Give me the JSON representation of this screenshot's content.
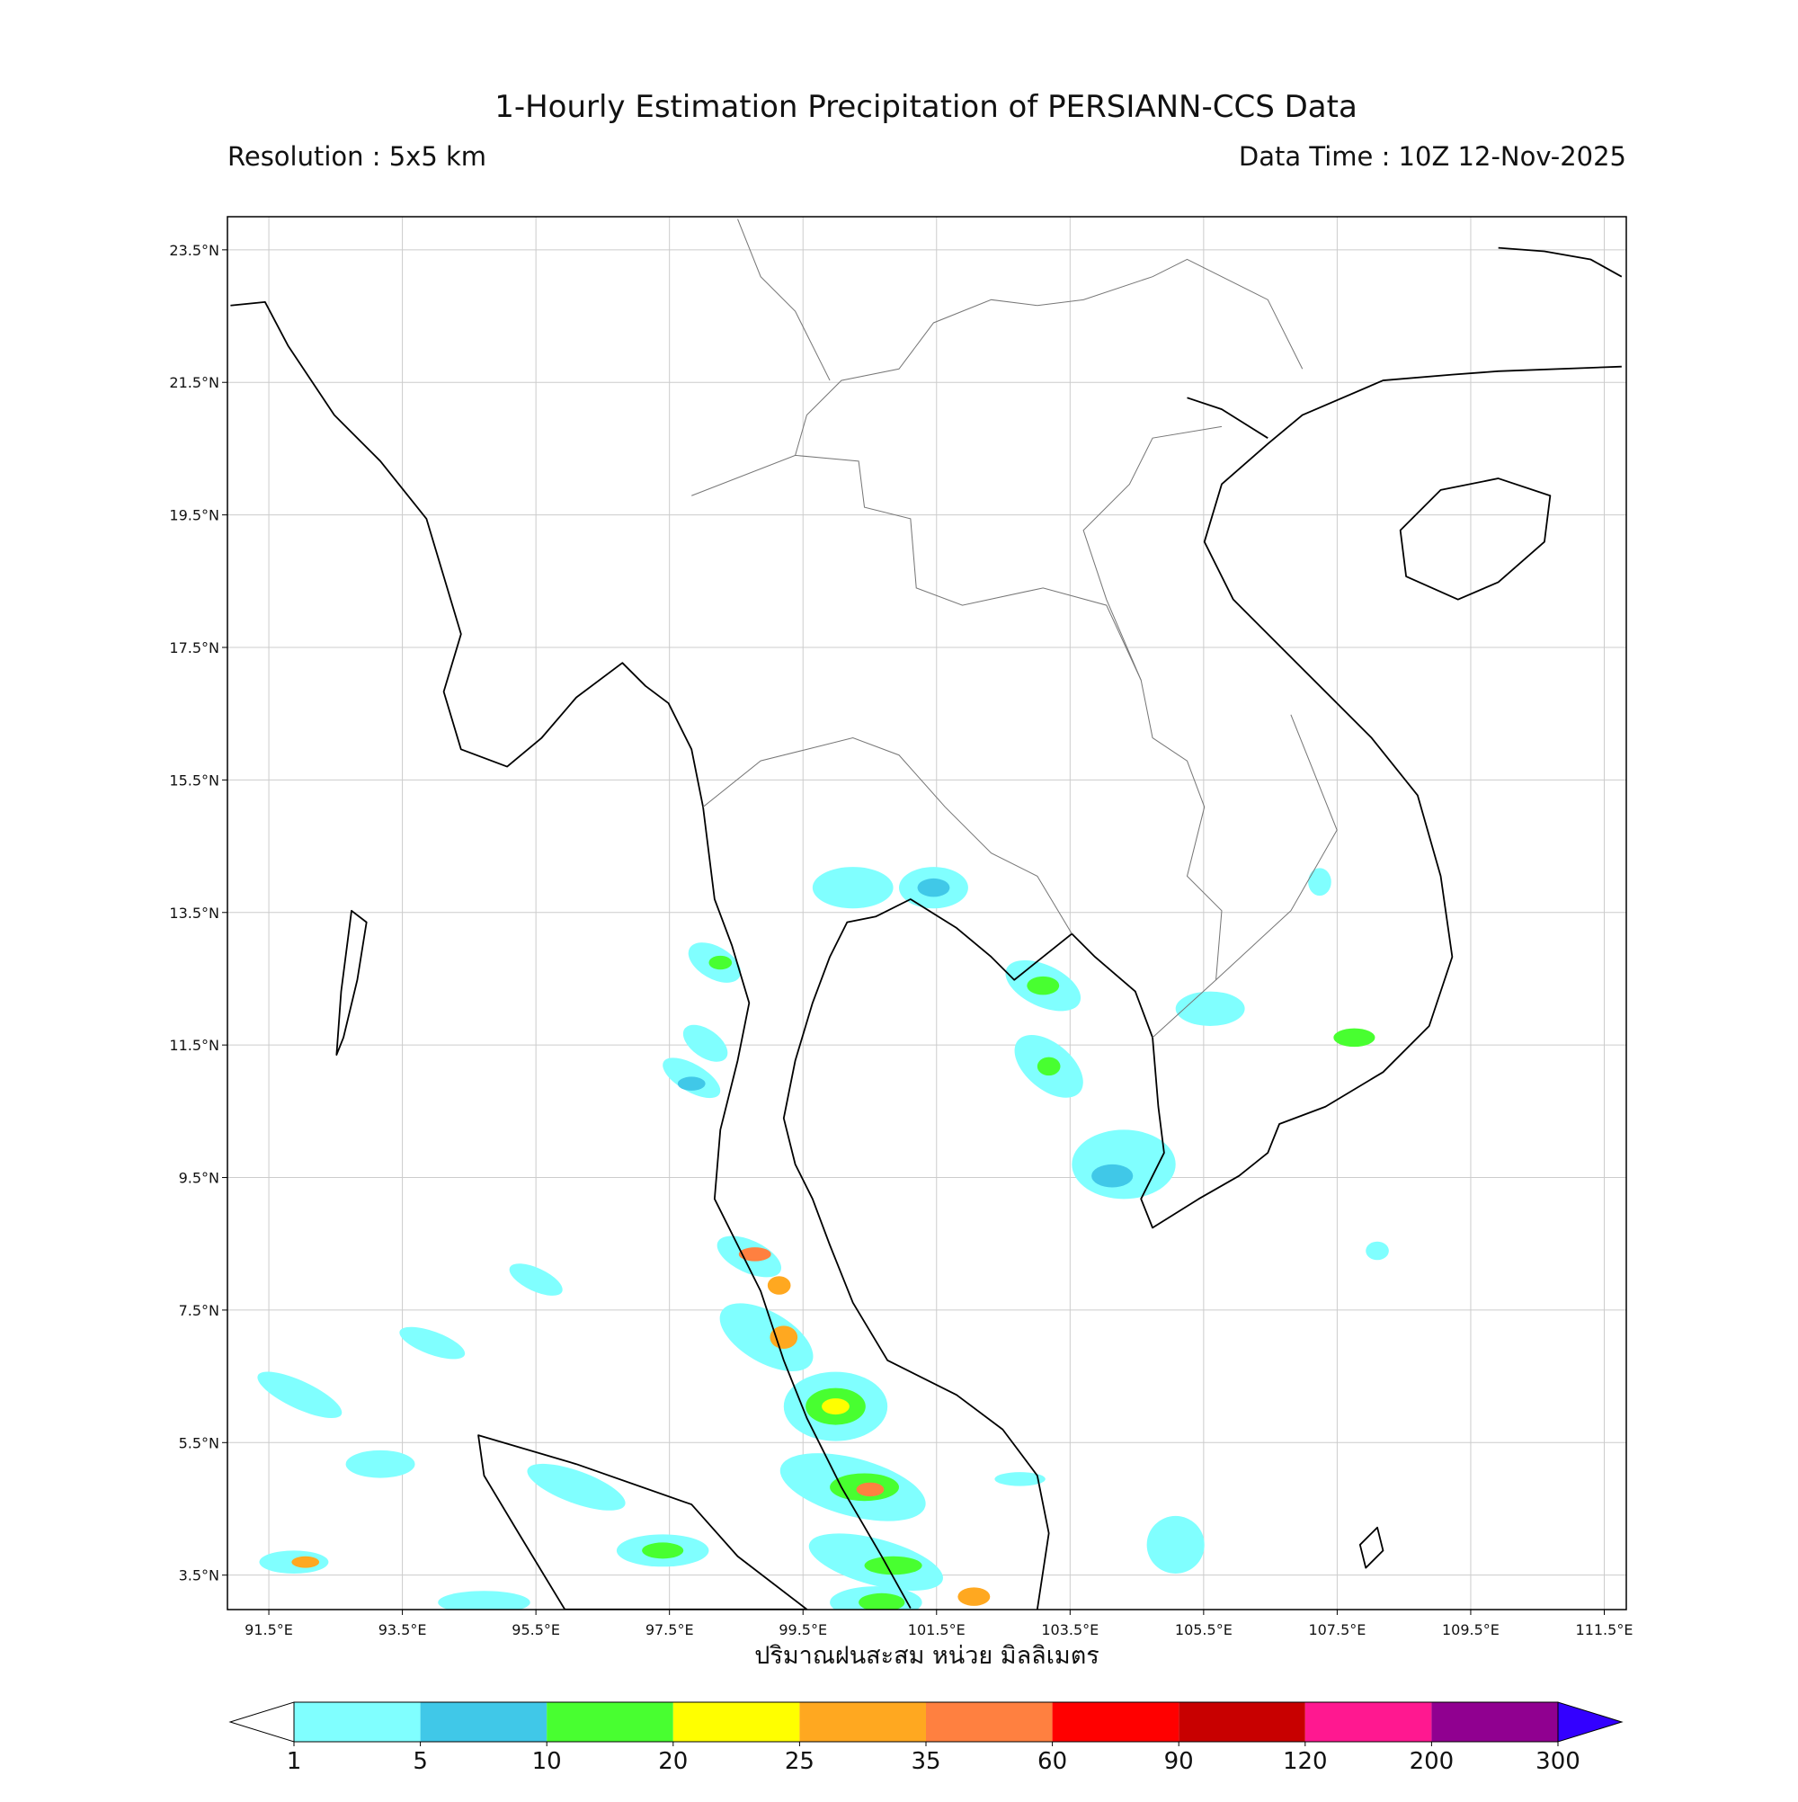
{
  "title": "1-Hourly Estimation Precipitation of PERSIANN-CCS Data",
  "resolution": "Resolution : 5x5 km",
  "data_time": "Data Time : 10Z 12-Nov-2025",
  "map": {
    "xlim": [
      90.88,
      111.83
    ],
    "ylim": [
      2.98,
      24.0
    ],
    "grid": true,
    "xticks": [
      {
        "value": 91.5,
        "label": "91.5°E"
      },
      {
        "value": 93.5,
        "label": "93.5°E"
      },
      {
        "value": 95.5,
        "label": "95.5°E"
      },
      {
        "value": 97.5,
        "label": "97.5°E"
      },
      {
        "value": 99.5,
        "label": "99.5°E"
      },
      {
        "value": 101.5,
        "label": "101.5°E"
      },
      {
        "value": 103.5,
        "label": "103.5°E"
      },
      {
        "value": 105.5,
        "label": "105.5°E"
      },
      {
        "value": 107.5,
        "label": "107.5°E"
      },
      {
        "value": 109.5,
        "label": "109.5°E"
      },
      {
        "value": 111.5,
        "label": "111.5°E"
      }
    ],
    "yticks": [
      {
        "value": 3.5,
        "label": "3.5°N"
      },
      {
        "value": 5.5,
        "label": "5.5°N"
      },
      {
        "value": 7.5,
        "label": "7.5°N"
      },
      {
        "value": 9.5,
        "label": "9.5°N"
      },
      {
        "value": 11.5,
        "label": "11.5°N"
      },
      {
        "value": 13.5,
        "label": "13.5°N"
      },
      {
        "value": 15.5,
        "label": "15.5°N"
      },
      {
        "value": 17.5,
        "label": "17.5°N"
      },
      {
        "value": 19.5,
        "label": "19.5°N"
      },
      {
        "value": 21.5,
        "label": "21.5°N"
      },
      {
        "value": 23.5,
        "label": "23.5°N"
      }
    ]
  },
  "colorbar": {
    "label": "ปริมาณฝนสะสม หน่วย มิลลิเมตร",
    "levels": [
      1,
      5,
      10,
      20,
      25,
      35,
      60,
      90,
      120,
      200,
      300
    ],
    "colors": [
      "#80ffff",
      "#40c8e8",
      "#48ff30",
      "#ffff00",
      "#ffa820",
      "#ff8040",
      "#ff0000",
      "#c80000",
      "#ff1890",
      "#900090"
    ],
    "under_color": "#ffffff",
    "over_color": "#3300ff"
  }
}
